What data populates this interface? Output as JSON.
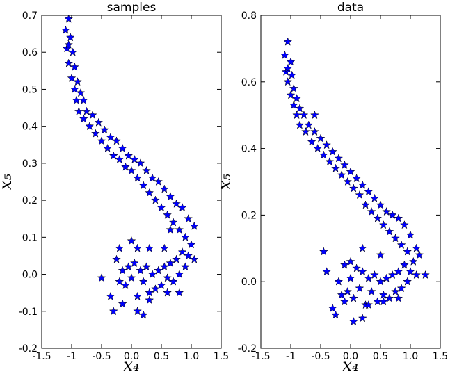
{
  "chart_data": [
    {
      "type": "scatter",
      "title": "samples",
      "xlabel": "x₄",
      "ylabel": "x₅",
      "color": "#0000ff",
      "marker": "star",
      "xlim": [
        -1.5,
        1.5
      ],
      "ylim": [
        -0.2,
        0.7
      ],
      "xticks": [
        -1.5,
        -1.0,
        -0.5,
        {
          "value": 0,
          "label": "0.0"
        },
        0.5,
        {
          "value": 1,
          "label": "1.0"
        },
        1.5
      ],
      "yticks": [
        -0.2,
        -0.1,
        {
          "value": 0,
          "label": "0.0"
        },
        0.1,
        0.2,
        0.3,
        0.4,
        0.5,
        0.6,
        0.7
      ],
      "x": [
        -1.05,
        -1.1,
        -1.02,
        -1.08,
        -0.98,
        -1.05,
        -0.95,
        -1.0,
        -0.9,
        -0.95,
        -0.85,
        -0.92,
        -0.8,
        -0.88,
        -0.75,
        -0.8,
        -0.65,
        -0.7,
        -0.55,
        -0.6,
        -0.45,
        -0.5,
        -0.35,
        -0.4,
        -0.25,
        -0.3,
        -0.15,
        -0.2,
        -0.05,
        -0.1,
        0.05,
        0.0,
        0.15,
        0.1,
        0.25,
        0.2,
        0.35,
        0.3,
        0.45,
        0.4,
        0.55,
        0.5,
        0.65,
        0.6,
        0.75,
        0.7,
        0.85,
        0.8,
        0.95,
        0.9,
        1.05,
        1.0,
        0.95,
        1.05,
        0.9,
        0.85,
        0.8,
        0.75,
        0.7,
        0.65,
        0.6,
        0.55,
        0.5,
        0.45,
        0.4,
        0.35,
        0.3,
        0.25,
        0.2,
        0.15,
        0.1,
        0.05,
        0.0,
        -0.05,
        -0.1,
        -0.15,
        -0.2,
        -0.25,
        0.1,
        0.3,
        0.55,
        0.65,
        -0.5,
        -0.35,
        -0.3,
        -0.15,
        0.1,
        0.3,
        0.6,
        0.8,
        -0.2,
        0.0,
        0.2,
        -1.05
      ],
      "values": [
        0.69,
        0.66,
        0.64,
        0.61,
        0.6,
        0.57,
        0.56,
        0.53,
        0.52,
        0.5,
        0.49,
        0.47,
        0.47,
        0.44,
        0.44,
        0.42,
        0.43,
        0.4,
        0.41,
        0.38,
        0.39,
        0.36,
        0.37,
        0.34,
        0.36,
        0.32,
        0.34,
        0.31,
        0.32,
        0.29,
        0.31,
        0.28,
        0.3,
        0.26,
        0.28,
        0.24,
        0.26,
        0.22,
        0.25,
        0.2,
        0.23,
        0.18,
        0.21,
        0.16,
        0.19,
        0.14,
        0.18,
        0.12,
        0.15,
        0.1,
        0.13,
        0.08,
        0.05,
        0.04,
        0.02,
        0.06,
        0.0,
        0.04,
        -0.02,
        0.03,
        -0.01,
        0.02,
        -0.03,
        0.01,
        -0.04,
        0.0,
        -0.05,
        0.02,
        -0.02,
        0.01,
        -0.06,
        0.03,
        -0.01,
        0.02,
        -0.03,
        0.01,
        -0.02,
        0.04,
        0.07,
        0.07,
        0.07,
        0.12,
        -0.01,
        -0.06,
        -0.1,
        -0.08,
        -0.1,
        -0.07,
        -0.05,
        -0.05,
        0.07,
        0.09,
        -0.11,
        0.62
      ]
    },
    {
      "type": "scatter",
      "title": "data",
      "xlabel": "x₄",
      "ylabel": "x₅",
      "color": "#0000ff",
      "marker": "star",
      "xlim": [
        -1.5,
        1.5
      ],
      "ylim": [
        -0.2,
        0.8
      ],
      "xticks": [
        -1.5,
        -1.0,
        -0.5,
        {
          "value": 0,
          "label": "0.0"
        },
        0.5,
        {
          "value": 1,
          "label": "1.0"
        },
        1.5
      ],
      "yticks": [
        -0.2,
        {
          "value": 0,
          "label": "0.0"
        },
        0.2,
        0.4,
        0.6,
        0.8
      ],
      "x": [
        -1.05,
        -1.1,
        -1.0,
        -1.08,
        -0.98,
        -1.05,
        -0.95,
        -1.0,
        -0.9,
        -0.95,
        -0.85,
        -0.9,
        -0.78,
        -0.85,
        -0.7,
        -0.75,
        -0.6,
        -0.65,
        -0.5,
        -0.55,
        -0.4,
        -0.45,
        -0.3,
        -0.35,
        -0.2,
        -0.25,
        -0.1,
        -0.15,
        0.0,
        -0.05,
        0.1,
        0.05,
        0.2,
        0.15,
        0.3,
        0.25,
        0.4,
        0.35,
        0.5,
        0.45,
        0.6,
        0.55,
        0.7,
        0.65,
        0.8,
        0.75,
        0.9,
        0.85,
        1.0,
        0.95,
        1.1,
        1.05,
        1.0,
        1.1,
        0.95,
        0.9,
        0.85,
        0.8,
        0.75,
        0.7,
        0.65,
        0.6,
        0.55,
        0.5,
        0.45,
        0.4,
        0.35,
        0.3,
        0.25,
        0.2,
        0.15,
        0.1,
        0.05,
        0.0,
        -0.05,
        -0.1,
        -0.15,
        -0.2,
        1.25,
        1.15,
        0.2,
        0.5,
        -0.45,
        -0.3,
        -0.25,
        -0.1,
        0.05,
        0.3,
        0.55,
        0.8,
        -0.4,
        0.0,
        0.2,
        -1.05,
        -0.6
      ],
      "values": [
        0.72,
        0.68,
        0.66,
        0.63,
        0.62,
        0.6,
        0.58,
        0.56,
        0.55,
        0.53,
        0.52,
        0.5,
        0.5,
        0.47,
        0.47,
        0.45,
        0.45,
        0.42,
        0.43,
        0.4,
        0.41,
        0.38,
        0.39,
        0.36,
        0.37,
        0.34,
        0.35,
        0.32,
        0.33,
        0.3,
        0.31,
        0.28,
        0.29,
        0.26,
        0.27,
        0.23,
        0.25,
        0.21,
        0.23,
        0.19,
        0.21,
        0.17,
        0.2,
        0.15,
        0.19,
        0.13,
        0.17,
        0.11,
        0.14,
        0.09,
        0.1,
        0.06,
        0.03,
        0.02,
        0.0,
        0.05,
        -0.02,
        0.03,
        -0.03,
        0.02,
        -0.05,
        0.01,
        -0.04,
        0.0,
        -0.06,
        0.02,
        -0.03,
        0.01,
        -0.07,
        0.03,
        -0.02,
        0.04,
        -0.05,
        0.01,
        -0.03,
        0.05,
        -0.04,
        0.0,
        0.02,
        0.08,
        0.1,
        0.08,
        0.09,
        -0.08,
        -0.1,
        -0.06,
        -0.12,
        -0.07,
        -0.06,
        -0.05,
        0.03,
        0.06,
        -0.11,
        0.64,
        0.5
      ]
    }
  ]
}
